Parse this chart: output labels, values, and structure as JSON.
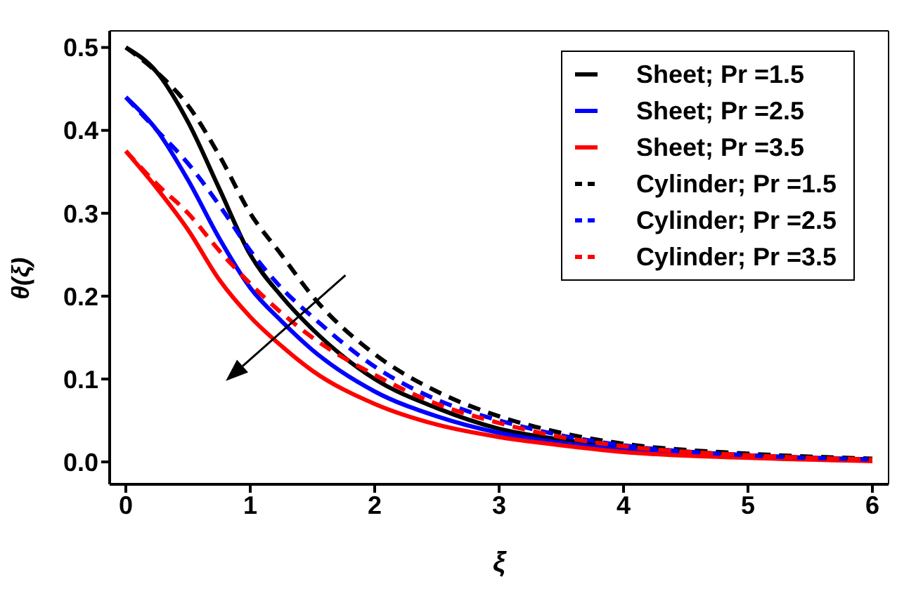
{
  "chart_data": {
    "type": "line",
    "xlabel": "ξ",
    "ylabel": "θ(ξ)",
    "x": [
      0,
      0.25,
      0.5,
      0.75,
      1,
      1.25,
      1.5,
      2,
      2.5,
      3,
      3.5,
      4,
      5,
      6
    ],
    "series": [
      {
        "name": "Sheet; Pr =1.5",
        "color": "#000000",
        "line_style": "solid",
        "values": [
          0.5,
          0.47,
          0.41,
          0.33,
          0.25,
          0.2,
          0.16,
          0.1,
          0.065,
          0.04,
          0.027,
          0.018,
          0.008,
          0.003
        ]
      },
      {
        "name": "Sheet; Pr =2.5",
        "color": "#0000ff",
        "line_style": "solid",
        "values": [
          0.44,
          0.4,
          0.34,
          0.27,
          0.21,
          0.17,
          0.135,
          0.085,
          0.055,
          0.035,
          0.023,
          0.015,
          0.006,
          0.002
        ]
      },
      {
        "name": "Sheet; Pr =3.5",
        "color": "#ff0000",
        "line_style": "solid",
        "values": [
          0.375,
          0.33,
          0.28,
          0.22,
          0.175,
          0.14,
          0.11,
          0.07,
          0.045,
          0.03,
          0.02,
          0.012,
          0.005,
          0.001
        ]
      },
      {
        "name": "Cylinder; Pr =1.5",
        "color": "#000000",
        "line_style": "dashed",
        "values": [
          0.5,
          0.47,
          0.43,
          0.37,
          0.3,
          0.25,
          0.2,
          0.13,
          0.085,
          0.055,
          0.035,
          0.022,
          0.01,
          0.004
        ]
      },
      {
        "name": "Cylinder; Pr =2.5",
        "color": "#0000ff",
        "line_style": "dashed",
        "values": [
          0.44,
          0.4,
          0.36,
          0.31,
          0.255,
          0.21,
          0.175,
          0.115,
          0.075,
          0.05,
          0.032,
          0.02,
          0.008,
          0.003
        ]
      },
      {
        "name": "Cylinder; Pr =3.5",
        "color": "#ff0000",
        "line_style": "dashed",
        "values": [
          0.375,
          0.335,
          0.3,
          0.255,
          0.215,
          0.18,
          0.15,
          0.105,
          0.07,
          0.047,
          0.03,
          0.019,
          0.008,
          0.003
        ]
      }
    ],
    "xlim": [
      -0.13,
      6.13
    ],
    "xticks": [
      0,
      1,
      2,
      3,
      4,
      5,
      6
    ],
    "ylim": [
      -0.027,
      0.52
    ],
    "yticks": [
      {
        "value": 0,
        "label": "0.0"
      },
      {
        "value": 0.1,
        "label": "0.1"
      },
      {
        "value": 0.2,
        "label": "0.2"
      },
      {
        "value": 0.3,
        "label": "0.3"
      },
      {
        "value": 0.4,
        "label": "0.4"
      },
      {
        "value": 0.5,
        "label": "0.5"
      }
    ],
    "grid": false,
    "legend": "top right",
    "marker": "none"
  }
}
